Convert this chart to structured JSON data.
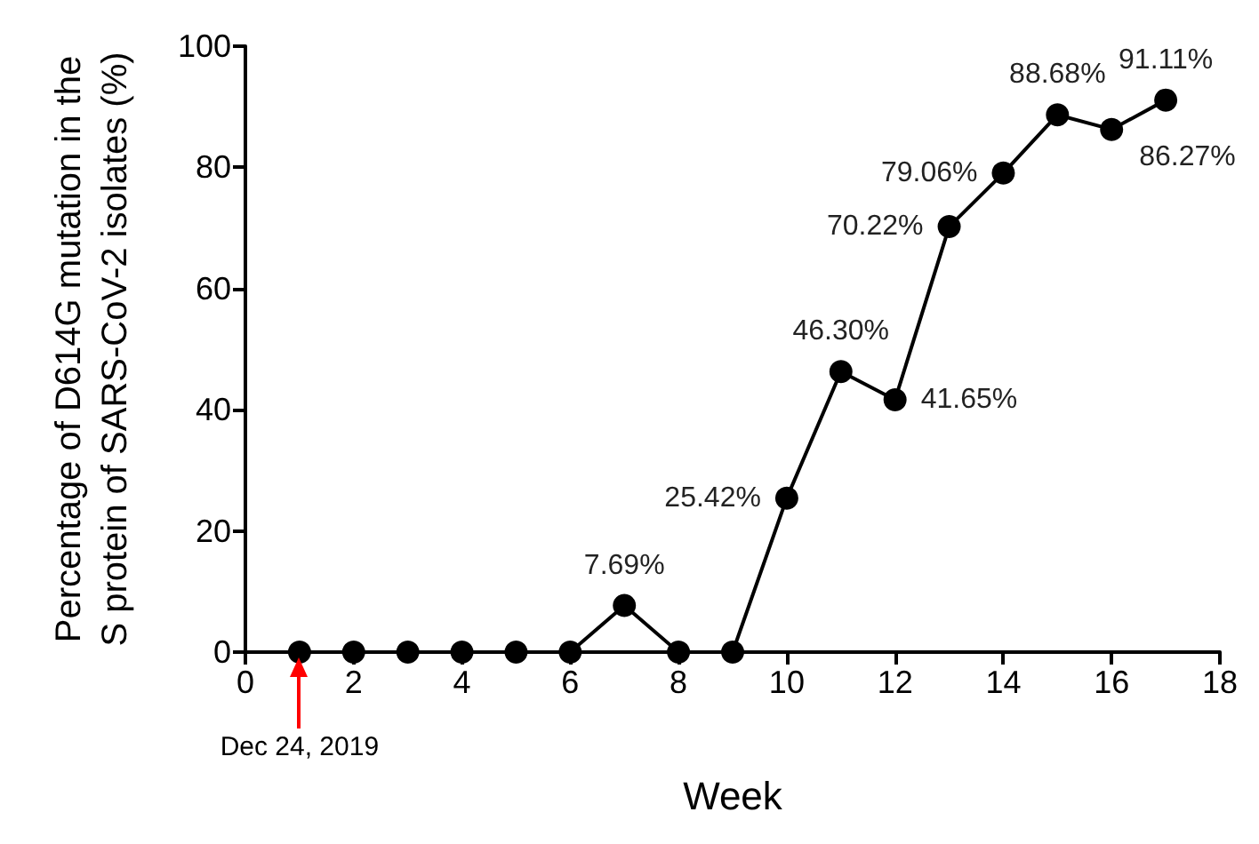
{
  "chart_data": {
    "type": "line",
    "xlabel": "Week",
    "ylabel": "Percentage of D614G mutation in the\nS protein of SARS-CoV-2 isolates (%)",
    "x": [
      1,
      2,
      3,
      4,
      5,
      6,
      7,
      8,
      9,
      10,
      11,
      12,
      13,
      14,
      15,
      16,
      17
    ],
    "series": [
      {
        "color": "#000000",
        "values": [
          0,
          0,
          0,
          0,
          0,
          0,
          7.69,
          0,
          0,
          25.42,
          46.3,
          41.65,
          70.22,
          79.06,
          88.68,
          86.27,
          91.11
        ],
        "value_labels": [
          null,
          null,
          null,
          null,
          null,
          null,
          "7.69%",
          null,
          null,
          "25.42%",
          "46.30%",
          "41.65%",
          "70.22%",
          "79.06%",
          "88.68%",
          "86.27%",
          "91.11%"
        ]
      }
    ],
    "xlim": [
      0,
      18
    ],
    "xticks": [
      0,
      2,
      4,
      6,
      8,
      10,
      12,
      14,
      16,
      18
    ],
    "ylim": [
      0,
      100
    ],
    "yticks": [
      0,
      20,
      40,
      60,
      80,
      100
    ],
    "annotations": [
      {
        "text": "Dec 24, 2019",
        "x": 1,
        "y": 0
      }
    ],
    "marker": "circle",
    "line_style": "solid"
  }
}
